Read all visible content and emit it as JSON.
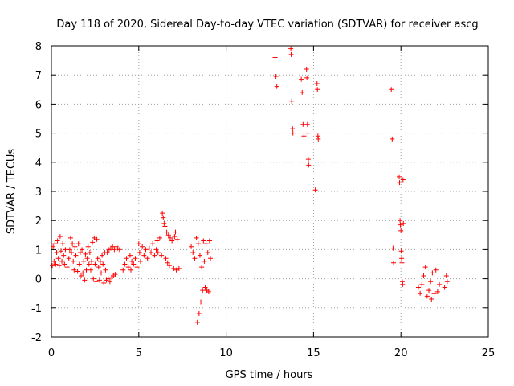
{
  "chart_data": {
    "type": "scatter",
    "title": "Day 118 of 2020, Sidereal Day-to-day VTEC variation (SDTVAR) for receiver ascg",
    "xlabel": "GPS time / hours",
    "ylabel": "SDTVAR / TECUs",
    "xlim": [
      0,
      25
    ],
    "ylim": [
      -2,
      8
    ],
    "xticks": [
      0,
      5,
      10,
      15,
      20,
      25
    ],
    "yticks": [
      -2,
      -1,
      0,
      1,
      2,
      3,
      4,
      5,
      6,
      7,
      8
    ],
    "grid": true,
    "marker": "+",
    "color": "#ff0000",
    "series": [
      {
        "name": "SDTVAR",
        "points": [
          [
            0.05,
            0.45
          ],
          [
            0.1,
            1.1
          ],
          [
            0.15,
            0.6
          ],
          [
            0.2,
            1.2
          ],
          [
            0.25,
            0.5
          ],
          [
            0.3,
            0.9
          ],
          [
            0.35,
            1.3
          ],
          [
            0.4,
            0.7
          ],
          [
            0.45,
            0.45
          ],
          [
            0.5,
            1.45
          ],
          [
            0.55,
            0.95
          ],
          [
            0.6,
            0.6
          ],
          [
            0.65,
            1.2
          ],
          [
            0.7,
            0.8
          ],
          [
            0.75,
            0.5
          ],
          [
            0.8,
            1.0
          ],
          [
            0.9,
            0.4
          ],
          [
            1.0,
            0.7
          ],
          [
            1.05,
            1.0
          ],
          [
            1.1,
            1.4
          ],
          [
            1.15,
            0.9
          ],
          [
            1.2,
            1.2
          ],
          [
            1.25,
            0.6
          ],
          [
            1.3,
            0.3
          ],
          [
            1.35,
            1.1
          ],
          [
            1.4,
            0.8
          ],
          [
            1.5,
            0.25
          ],
          [
            1.55,
            1.2
          ],
          [
            1.6,
            0.5
          ],
          [
            1.65,
            0.9
          ],
          [
            1.7,
            0.1
          ],
          [
            1.75,
            1.0
          ],
          [
            1.8,
            0.2
          ],
          [
            1.85,
            0.6
          ],
          [
            1.9,
            -0.05
          ],
          [
            1.95,
            0.85
          ],
          [
            2.0,
            0.3
          ],
          [
            2.05,
            0.7
          ],
          [
            2.1,
            1.1
          ],
          [
            2.15,
            0.5
          ],
          [
            2.2,
            0.9
          ],
          [
            2.25,
            0.3
          ],
          [
            2.3,
            0.6
          ],
          [
            2.35,
            1.25
          ],
          [
            2.4,
            0.0
          ],
          [
            2.45,
            1.4
          ],
          [
            2.5,
            0.5
          ],
          [
            2.55,
            -0.1
          ],
          [
            2.6,
            1.35
          ],
          [
            2.65,
            0.7
          ],
          [
            2.7,
            0.4
          ],
          [
            2.75,
            -0.05
          ],
          [
            2.8,
            0.6
          ],
          [
            2.85,
            0.2
          ],
          [
            2.9,
            0.8
          ],
          [
            2.95,
            0.5
          ],
          [
            3.0,
            -0.15
          ],
          [
            3.05,
            0.9
          ],
          [
            3.1,
            0.3
          ],
          [
            3.15,
            -0.05
          ],
          [
            3.2,
            0.9
          ],
          [
            3.25,
            0.0
          ],
          [
            3.3,
            1.0
          ],
          [
            3.35,
            -0.1
          ],
          [
            3.4,
            1.05
          ],
          [
            3.45,
            0.05
          ],
          [
            3.5,
            1.1
          ],
          [
            3.55,
            0.1
          ],
          [
            3.6,
            1.0
          ],
          [
            3.65,
            0.15
          ],
          [
            3.7,
            1.1
          ],
          [
            3.8,
            1.05
          ],
          [
            3.9,
            1.0
          ],
          [
            4.1,
            0.3
          ],
          [
            4.2,
            0.5
          ],
          [
            4.3,
            0.7
          ],
          [
            4.4,
            0.4
          ],
          [
            4.5,
            0.8
          ],
          [
            4.55,
            0.3
          ],
          [
            4.6,
            0.6
          ],
          [
            4.7,
            0.5
          ],
          [
            4.8,
            0.7
          ],
          [
            4.9,
            0.4
          ],
          [
            5.0,
            1.2
          ],
          [
            5.05,
            0.9
          ],
          [
            5.1,
            0.6
          ],
          [
            5.2,
            1.1
          ],
          [
            5.3,
            0.8
          ],
          [
            5.4,
            1.0
          ],
          [
            5.5,
            0.7
          ],
          [
            5.6,
            1.05
          ],
          [
            5.7,
            0.9
          ],
          [
            5.8,
            1.2
          ],
          [
            5.9,
            0.8
          ],
          [
            6.0,
            1.0
          ],
          [
            6.05,
            1.3
          ],
          [
            6.1,
            0.9
          ],
          [
            6.2,
            1.4
          ],
          [
            6.3,
            0.8
          ],
          [
            6.35,
            2.25
          ],
          [
            6.4,
            2.1
          ],
          [
            6.45,
            1.9
          ],
          [
            6.5,
            1.8
          ],
          [
            6.55,
            0.7
          ],
          [
            6.6,
            1.6
          ],
          [
            6.65,
            0.55
          ],
          [
            6.7,
            1.5
          ],
          [
            6.75,
            0.45
          ],
          [
            6.8,
            1.4
          ],
          [
            6.9,
            1.3
          ],
          [
            7.0,
            0.35
          ],
          [
            7.05,
            1.45
          ],
          [
            7.1,
            1.6
          ],
          [
            7.15,
            0.3
          ],
          [
            7.2,
            1.35
          ],
          [
            7.3,
            0.35
          ],
          [
            8.0,
            1.1
          ],
          [
            8.1,
            0.9
          ],
          [
            8.2,
            0.7
          ],
          [
            8.3,
            1.4
          ],
          [
            8.35,
            -1.5
          ],
          [
            8.4,
            1.2
          ],
          [
            8.45,
            -1.2
          ],
          [
            8.5,
            0.8
          ],
          [
            8.55,
            -0.8
          ],
          [
            8.6,
            0.4
          ],
          [
            8.65,
            -0.4
          ],
          [
            8.7,
            1.3
          ],
          [
            8.75,
            0.6
          ],
          [
            8.8,
            -0.3
          ],
          [
            8.85,
            1.2
          ],
          [
            8.9,
            -0.4
          ],
          [
            8.95,
            0.9
          ],
          [
            9.0,
            -0.45
          ],
          [
            9.05,
            1.3
          ],
          [
            9.1,
            0.7
          ],
          [
            12.8,
            7.6
          ],
          [
            12.85,
            6.95
          ],
          [
            12.9,
            6.6
          ],
          [
            13.7,
            7.9
          ],
          [
            13.72,
            7.7
          ],
          [
            13.75,
            6.1
          ],
          [
            13.8,
            5.15
          ],
          [
            13.82,
            5.0
          ],
          [
            14.3,
            6.85
          ],
          [
            14.35,
            6.4
          ],
          [
            14.4,
            5.3
          ],
          [
            14.45,
            4.9
          ],
          [
            14.6,
            7.2
          ],
          [
            14.62,
            6.9
          ],
          [
            14.65,
            5.3
          ],
          [
            14.68,
            5.0
          ],
          [
            14.7,
            4.1
          ],
          [
            14.72,
            3.9
          ],
          [
            15.1,
            3.05
          ],
          [
            15.2,
            6.7
          ],
          [
            15.22,
            6.5
          ],
          [
            15.25,
            4.9
          ],
          [
            15.27,
            4.8
          ],
          [
            19.45,
            6.5
          ],
          [
            19.5,
            4.8
          ],
          [
            19.55,
            1.05
          ],
          [
            19.58,
            0.55
          ],
          [
            19.9,
            3.5
          ],
          [
            19.92,
            3.3
          ],
          [
            19.95,
            2.0
          ],
          [
            19.97,
            1.85
          ],
          [
            20.0,
            1.65
          ],
          [
            20.02,
            0.95
          ],
          [
            20.04,
            0.7
          ],
          [
            20.06,
            0.55
          ],
          [
            20.08,
            -0.1
          ],
          [
            20.1,
            -0.2
          ],
          [
            20.12,
            3.4
          ],
          [
            20.14,
            1.9
          ],
          [
            21.0,
            -0.3
          ],
          [
            21.1,
            -0.5
          ],
          [
            21.2,
            -0.2
          ],
          [
            21.3,
            0.1
          ],
          [
            21.4,
            0.4
          ],
          [
            21.5,
            -0.6
          ],
          [
            21.6,
            -0.4
          ],
          [
            21.7,
            -0.1
          ],
          [
            21.75,
            -0.7
          ],
          [
            21.8,
            0.2
          ],
          [
            21.9,
            -0.5
          ],
          [
            22.0,
            0.3
          ],
          [
            22.1,
            -0.45
          ],
          [
            22.2,
            -0.2
          ],
          [
            22.5,
            -0.3
          ],
          [
            22.6,
            0.1
          ],
          [
            22.65,
            -0.1
          ]
        ]
      }
    ]
  }
}
